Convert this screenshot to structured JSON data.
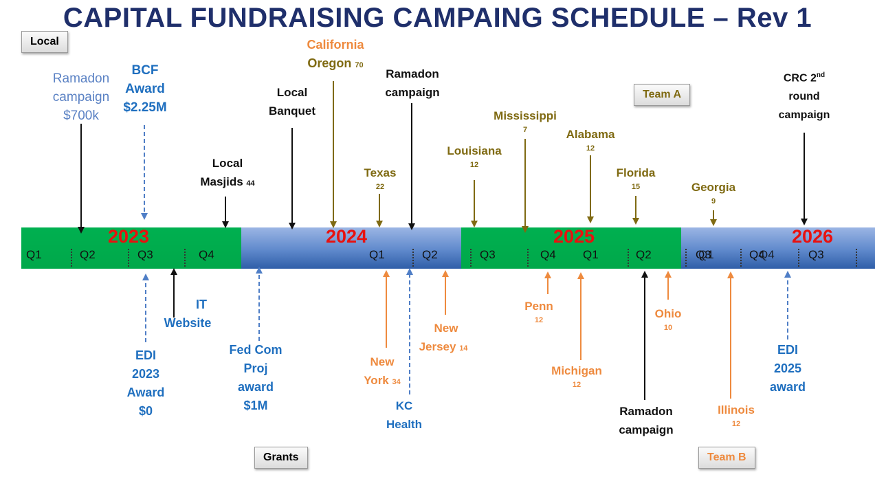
{
  "title": "CAPITAL FUNDRAISING CAMPAING SCHEDULE – Rev 1",
  "tags": {
    "local": "Local",
    "grants": "Grants",
    "team_a": "Team A",
    "team_b": "Team B"
  },
  "colors": {
    "green": "#00b050",
    "blue": "#4f7ec6",
    "year_red": "#e8110f",
    "olive": "#7f6a12",
    "orange": "#ee8a3e",
    "dark_blue": "#1f6fbf"
  },
  "timeline": {
    "years": [
      "2023",
      "2024",
      "2025",
      "2026"
    ],
    "quarters": [
      "Q1",
      "Q2",
      "Q3",
      "Q4",
      "Q1",
      "Q2",
      "Q3",
      "Q4",
      "Q1",
      "Q2",
      "Q3",
      "Q1",
      "Q4",
      "Q3"
    ]
  },
  "events": {
    "ramadon_2023": [
      "Ramadon",
      "campaign",
      "$700k"
    ],
    "bcf": [
      "BCF",
      "Award",
      "$2.25M"
    ],
    "local_masjids": [
      "Local",
      "Masjids"
    ],
    "local_masjids_n": "44",
    "local_banquet": [
      "Local",
      "Banquet"
    ],
    "california": "California",
    "oregon": "Oregon",
    "oregon_n": "70",
    "ramadon_2024": [
      "Ramadon",
      "campaign"
    ],
    "texas": "Texas",
    "texas_n": "22",
    "louisiana": "Louisiana",
    "louisiana_n": "12",
    "mississippi": "Mississippi",
    "mississippi_n": "7",
    "alabama": "Alabama",
    "alabama_n": "12",
    "florida": "Florida",
    "florida_n": "15",
    "georgia": "Georgia",
    "georgia_n": "9",
    "crc_line1": "CRC 2",
    "crc_sup": "nd",
    "crc_rest": [
      "round",
      "campaign"
    ],
    "edi_2023": [
      "EDI",
      "2023",
      "Award",
      "$0"
    ],
    "it_website": [
      "IT",
      "Website"
    ],
    "fed_com": [
      "Fed Com",
      "Proj",
      "award",
      "$1M"
    ],
    "new_york": "New",
    "new_york_2": "York",
    "new_york_n": "34",
    "kc_health": [
      "KC",
      "Health"
    ],
    "new_jersey": "New",
    "new_jersey_2": "Jersey",
    "new_jersey_n": "14",
    "penn": "Penn",
    "penn_n": "12",
    "michigan": "Michigan",
    "michigan_n": "12",
    "ramadon_2025": [
      "Ramadon",
      "campaign"
    ],
    "ohio": "Ohio",
    "ohio_n": "10",
    "illinois": "Illinois",
    "illinois_n": "12",
    "edi_2025": [
      "EDI",
      "2025",
      "award"
    ]
  }
}
